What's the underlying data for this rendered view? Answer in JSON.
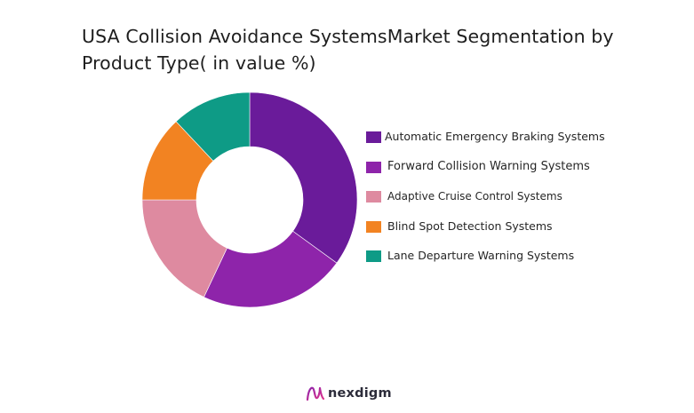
{
  "chart_data": {
    "type": "pie",
    "title_line1": "USA Collision Avoidance SystemsMarket Segmentation by",
    "title_line2": "Product Type( in value %)",
    "categories": [
      "Automatic Emergency Braking Systems",
      "Forward Collision Warning Systems",
      "Adaptive Cruise Control Systems",
      "Blind Spot Detection Systems",
      "Lane Departure Warning Systems"
    ],
    "values": [
      35,
      22,
      18,
      13,
      12
    ],
    "colors": [
      "#6a1b9a",
      "#8e24aa",
      "#de8aa0",
      "#f28322",
      "#0e9b86"
    ],
    "donut": true,
    "legend_position": "right"
  },
  "brand": {
    "name": "nexdigm",
    "icon": "nexdigm-logo-icon"
  }
}
